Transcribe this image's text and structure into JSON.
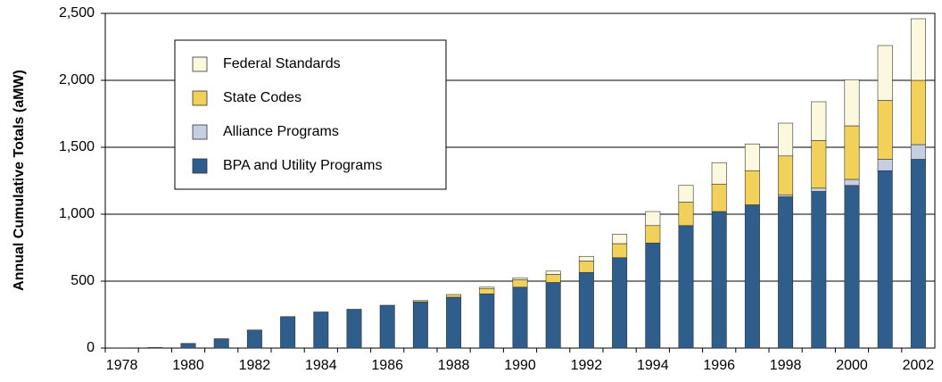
{
  "chart_data": {
    "type": "stacked-bar",
    "y_label": "Annual Cumulative Totals (aMW)",
    "categories": [
      "1978",
      null,
      "1980",
      null,
      "1982",
      null,
      "1984",
      null,
      "1986",
      null,
      "1988",
      null,
      "1990",
      null,
      "1992",
      null,
      "1994",
      null,
      "1996",
      null,
      "1998",
      null,
      "2000",
      null,
      "2002"
    ],
    "series": [
      {
        "name": "BPA and Utility Programs",
        "color": "#2f5d8c",
        "values": [
          0,
          5,
          35,
          70,
          135,
          235,
          270,
          290,
          320,
          345,
          380,
          405,
          455,
          490,
          565,
          675,
          785,
          915,
          1020,
          1070,
          1130,
          1170,
          1215,
          1325,
          1410
        ]
      },
      {
        "name": "Alliance Programs",
        "color": "#c6cee2",
        "values": [
          0,
          0,
          0,
          0,
          0,
          0,
          0,
          0,
          0,
          0,
          0,
          0,
          0,
          0,
          0,
          0,
          0,
          0,
          0,
          0,
          15,
          25,
          45,
          85,
          110
        ]
      },
      {
        "name": "State Codes",
        "color": "#f2d15a",
        "values": [
          0,
          0,
          0,
          0,
          0,
          0,
          0,
          0,
          0,
          10,
          20,
          40,
          55,
          60,
          85,
          105,
          130,
          175,
          205,
          255,
          290,
          355,
          400,
          440,
          480
        ]
      },
      {
        "name": "Federal Standards",
        "color": "#fcf8de",
        "values": [
          0,
          0,
          0,
          0,
          0,
          0,
          0,
          0,
          0,
          0,
          0,
          10,
          15,
          25,
          35,
          70,
          105,
          125,
          160,
          200,
          245,
          290,
          345,
          410,
          460
        ]
      }
    ],
    "ylim": [
      0,
      2500
    ],
    "yticks": [
      0,
      500,
      {
        "value": 1000,
        "label": "1,000"
      },
      {
        "value": 1500,
        "label": "1,500"
      },
      {
        "value": 2000,
        "label": "2,000"
      },
      {
        "value": 2500,
        "label": "2,500"
      }
    ],
    "grid": true
  }
}
